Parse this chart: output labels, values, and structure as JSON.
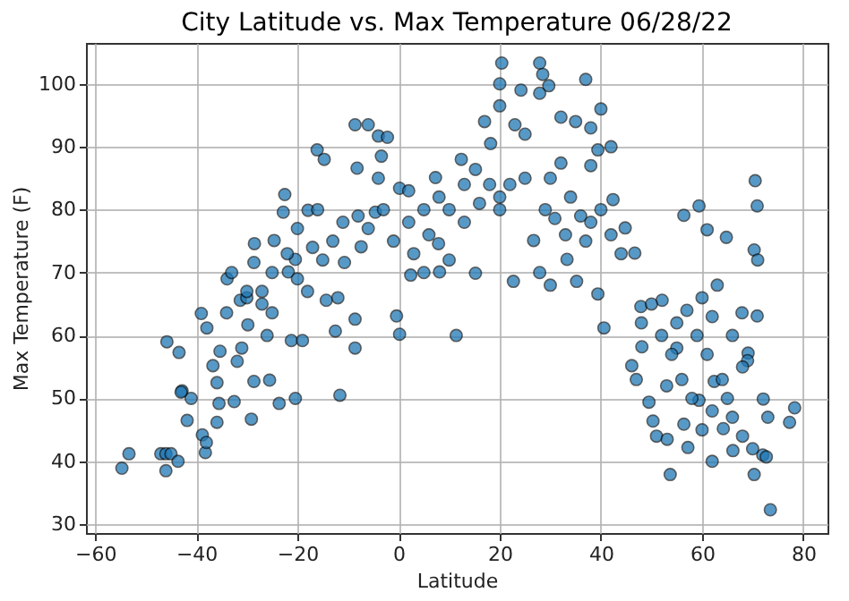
{
  "chart_data": {
    "type": "scatter",
    "title": "City Latitude vs. Max Temperature 06/28/22",
    "xlabel": "Latitude",
    "ylabel": "Max Temperature (F)",
    "xlim": [
      -61.8,
      84.8
    ],
    "ylim": [
      28.6,
      106.5
    ],
    "xticks": [
      -60,
      -40,
      -20,
      0,
      20,
      40,
      60,
      80
    ],
    "yticks": [
      30,
      40,
      50,
      60,
      70,
      80,
      90,
      100
    ],
    "grid": true,
    "marker": "circle",
    "series": [
      {
        "color": "#1f77b4",
        "x": [
          -54.7,
          -53.3,
          -47,
          -46,
          -45,
          -46,
          -43.6,
          -45.8,
          -43.4,
          -42.8,
          -41,
          -43,
          -41.8,
          -38.8,
          -38.2,
          -38,
          -39,
          -37.9,
          -36.7,
          -35.3,
          -34,
          -33.9,
          -35.9,
          -35.5,
          -35.9,
          -32.5,
          -29.1,
          -28.6,
          -31.9,
          -31.3,
          -30,
          -27,
          -29.8,
          -28.6,
          -28.5,
          -25.5,
          -23.6,
          -20.4,
          -25,
          -21.2,
          -19,
          -24.6,
          -22.5,
          -22.8,
          -21.8,
          -20.4,
          -17.9,
          -16,
          -16.1,
          -14.7,
          -12.5,
          -11.6,
          -8.6,
          -8.6,
          -14.3,
          -10.7,
          -7.4,
          -8.6,
          -6,
          -4,
          -2.2,
          -8.2,
          -4,
          -3.4,
          -4.6,
          0.2,
          2,
          -0.4,
          0.2,
          2.4,
          5,
          8.1,
          -1,
          11.4,
          20.4,
          27.9,
          28.5,
          20,
          20,
          24.2,
          27.9,
          29.7,
          37,
          40,
          42,
          17,
          18.2,
          23,
          25,
          32.1,
          35,
          38,
          32.1,
          38,
          39.4,
          12.4,
          15.2,
          7.3,
          7.9,
          10,
          15.2,
          20,
          22.7,
          26.7,
          27.9,
          30,
          30.9,
          33.3,
          35.2,
          39.4,
          40.6,
          42.4,
          44.8,
          46.7,
          47.9,
          46.1,
          47,
          48.1,
          49.5,
          50.3,
          51,
          53.1,
          53.7,
          52.1,
          55,
          56.4,
          59.4,
          56.4,
          57.2,
          59.4,
          61,
          61,
          64.8,
          62.4,
          65,
          64.2,
          66.1,
          69.1,
          69,
          70.5,
          70.9,
          70.3,
          71,
          70.9,
          70.3,
          72,
          72.1,
          73,
          73.5,
          78.3,
          77.3,
          72.7,
          67.9,
          2,
          5,
          8,
          10,
          13,
          16,
          18,
          20,
          22,
          25,
          13,
          6,
          3,
          30,
          34,
          36,
          38,
          40,
          42,
          44,
          37,
          33,
          29,
          48,
          50,
          52,
          54,
          55,
          57,
          59,
          60,
          62,
          63,
          66,
          68,
          53,
          56,
          58,
          60,
          62,
          64,
          66,
          68,
          70,
          62,
          -33,
          -30,
          -27,
          -25,
          -22,
          -20,
          -18,
          -15,
          -13,
          -11,
          -8,
          -6,
          -3,
          -12,
          -17,
          -20,
          -26,
          -31
        ],
        "values": [
          38.9,
          41.2,
          41.2,
          41.2,
          41.2,
          38.5,
          40,
          59,
          57.3,
          51.2,
          50,
          51,
          46.5,
          44.2,
          41.4,
          43,
          63.5,
          61.2,
          55.2,
          57.5,
          63.6,
          69,
          52.5,
          49.2,
          46.2,
          49.5,
          46.7,
          52.7,
          55.9,
          65.6,
          66,
          67,
          61.7,
          71.6,
          74.6,
          52.9,
          49.2,
          50,
          63.6,
          59.2,
          59.2,
          75.1,
          82.4,
          79.6,
          70.1,
          72.1,
          79.9,
          80,
          89.5,
          88,
          60.7,
          50.5,
          58,
          62.6,
          65.6,
          71.6,
          74.1,
          93.5,
          93.5,
          91.7,
          91.5,
          86.6,
          85,
          88.5,
          79.6,
          83.4,
          83,
          63.1,
          60.2,
          69.6,
          70,
          70.1,
          75,
          60,
          103.3,
          103.3,
          101.5,
          100,
          96.5,
          99,
          98.5,
          99.7,
          100.7,
          96,
          90,
          94,
          90.5,
          93.5,
          92,
          94.7,
          94,
          93,
          87.4,
          87,
          89.5,
          88,
          86.4,
          85.1,
          74.6,
          72,
          69.9,
          82,
          68.6,
          75.1,
          70,
          68,
          78.6,
          72.1,
          68.6,
          66.6,
          61.2,
          81.6,
          77.1,
          73.1,
          64.6,
          55.2,
          53,
          58.2,
          49.4,
          46.4,
          44,
          43.5,
          37.9,
          65.6,
          58,
          79.1,
          80.6,
          45.9,
          42.2,
          49.7,
          57,
          76.8,
          75.6,
          52.7,
          50,
          45.2,
          41.7,
          57.2,
          56,
          84.6,
          80.6,
          73.6,
          72,
          63.1,
          37.9,
          41,
          49.9,
          47,
          32.3,
          48.5,
          46.2,
          40.7,
          63.6,
          78,
          80,
          82,
          80,
          78,
          81,
          84,
          80,
          84,
          85,
          84,
          76,
          73,
          85,
          82,
          79,
          78,
          80,
          76,
          73,
          75,
          76,
          80,
          62,
          65,
          60,
          57,
          62,
          64,
          60,
          66,
          63,
          68,
          60,
          55,
          52,
          53,
          50,
          45,
          48,
          53,
          47,
          44,
          42,
          40,
          70,
          67,
          65,
          70,
          73,
          69,
          67,
          72,
          75,
          78,
          79,
          77,
          80,
          66,
          74,
          77,
          60,
          58
        ]
      }
    ]
  }
}
